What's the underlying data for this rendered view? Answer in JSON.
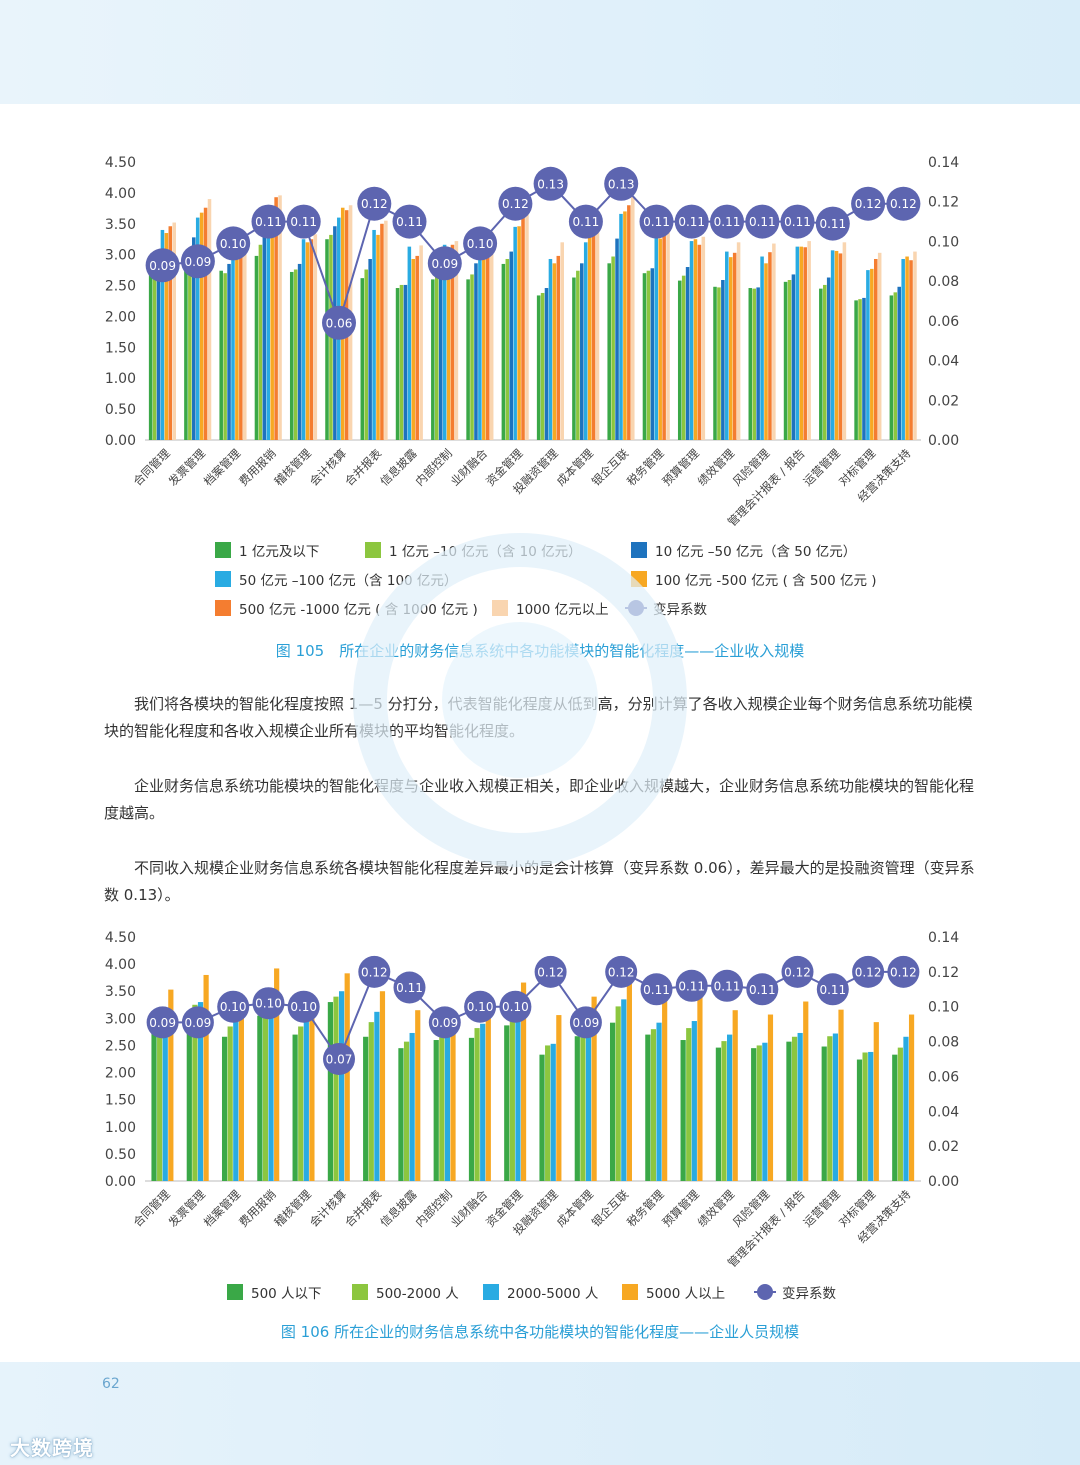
{
  "page": {
    "page_number": "62",
    "brand_logo": "大数跨境"
  },
  "categories": [
    "合同管理",
    "发票管理",
    "档案管理",
    "费用报销",
    "稽核管理",
    "会计核算",
    "合并报表",
    "信息披露",
    "内部控制",
    "业财融合",
    "资金管理",
    "投融资管理",
    "成本管理",
    "银企互联",
    "税务管理",
    "预算管理",
    "绩效管理",
    "风险管理",
    "管理会计报表 / 报告",
    "运营管理",
    "对标管理",
    "经营决策支持"
  ],
  "chart_data": [
    {
      "type": "bar",
      "title": "图 105　所在企业的财务信息系统中各功能模块的智能化程度——企业收入规模",
      "y_ticks": [
        "4.50",
        "4.00",
        "3.50",
        "3.00",
        "2.50",
        "2.00",
        "1.50",
        "1.00",
        "0.50",
        "0.00"
      ],
      "y2_ticks": [
        "0.14",
        "0.12",
        "0.10",
        "0.08",
        "0.06",
        "0.04",
        "0.02",
        "0.00"
      ],
      "ylim": [
        0,
        4.5
      ],
      "y2lim": [
        0,
        0.14
      ],
      "series": [
        {
          "name": "1 亿元及以下",
          "color": "#3aa847",
          "values": [
            2.82,
            2.9,
            2.74,
            2.98,
            2.72,
            3.25,
            2.62,
            2.46,
            2.6,
            2.6,
            2.85,
            2.34,
            2.63,
            2.86,
            2.7,
            2.58,
            2.48,
            2.46,
            2.56,
            2.45,
            2.26,
            2.34
          ]
        },
        {
          "name": "1 亿元 –10 亿元（含 10 亿元）",
          "color": "#8cc63f",
          "values": [
            2.88,
            2.95,
            2.7,
            3.16,
            2.76,
            3.32,
            2.76,
            2.51,
            2.66,
            2.68,
            2.93,
            2.38,
            2.74,
            2.97,
            2.74,
            2.66,
            2.47,
            2.45,
            2.59,
            2.51,
            2.28,
            2.39
          ]
        },
        {
          "name": "10 亿元 –50 亿元（含 50 亿元）",
          "color": "#1e73be",
          "values": [
            3.0,
            3.28,
            2.85,
            3.28,
            2.85,
            3.46,
            2.93,
            2.51,
            2.82,
            2.86,
            3.05,
            2.46,
            2.86,
            3.26,
            2.78,
            2.8,
            2.59,
            2.47,
            2.68,
            2.63,
            2.3,
            2.48
          ]
        },
        {
          "name": "50 亿元 –100 亿元（含 100 亿元）",
          "color": "#29abe2",
          "values": [
            3.4,
            3.6,
            3.1,
            3.6,
            3.25,
            3.6,
            3.4,
            3.13,
            3.16,
            3.1,
            3.45,
            2.93,
            3.2,
            3.66,
            3.28,
            3.22,
            3.05,
            2.97,
            3.13,
            3.07,
            2.75,
            2.93
          ]
        },
        {
          "name": "100 亿元 -500 亿元 ( 含 500 亿元 )",
          "color": "#f7a823",
          "values": [
            3.35,
            3.68,
            3.05,
            3.66,
            3.2,
            3.76,
            3.32,
            2.93,
            3.08,
            3.15,
            3.46,
            2.86,
            3.36,
            3.7,
            3.26,
            3.25,
            2.96,
            2.86,
            3.13,
            3.06,
            2.77,
            2.97
          ]
        },
        {
          "name": "500 亿元 -1000 亿元 ( 含 1000 亿元 )",
          "color": "#f47d30",
          "values": [
            3.46,
            3.76,
            3.15,
            3.93,
            3.25,
            3.72,
            3.5,
            2.98,
            3.16,
            3.3,
            3.6,
            2.98,
            3.46,
            3.8,
            3.32,
            3.16,
            3.03,
            3.04,
            3.12,
            3.02,
            2.93,
            2.91
          ]
        },
        {
          "name": "1000 亿元以上",
          "color": "#f9d5b0",
          "values": [
            3.52,
            3.9,
            3.26,
            3.96,
            3.33,
            3.8,
            3.55,
            3.15,
            3.22,
            3.37,
            3.71,
            3.2,
            3.6,
            3.93,
            3.38,
            3.29,
            3.2,
            3.18,
            3.22,
            3.2,
            3.03,
            3.05
          ]
        }
      ],
      "line": {
        "name": "变异系数",
        "color": "#5d65b0",
        "values": [
          0.09,
          0.09,
          0.1,
          0.11,
          0.11,
          0.06,
          0.12,
          0.11,
          0.09,
          0.1,
          0.12,
          0.13,
          0.11,
          0.13,
          0.11,
          0.11,
          0.11,
          0.11,
          0.11,
          0.11,
          0.12,
          0.12
        ],
        "labels": [
          "0.09",
          "0.09",
          "0.10",
          "0.11",
          "0.11",
          "0.06",
          "0.12",
          "0.11",
          "0.09",
          "0.10",
          "0.12",
          "0.13",
          "0.11",
          "0.13",
          "0.11",
          "0.11",
          "0.11",
          "0.11",
          "0.11",
          "0.11",
          "0.12",
          "0.12"
        ],
        "plot_values": [
          0.088,
          0.09,
          0.099,
          0.11,
          0.11,
          0.059,
          0.119,
          0.11,
          0.089,
          0.099,
          0.119,
          0.129,
          0.11,
          0.129,
          0.11,
          0.11,
          0.11,
          0.11,
          0.11,
          0.109,
          0.119,
          0.119
        ]
      }
    },
    {
      "type": "bar",
      "title": "图 106  所在企业的财务信息系统中各功能模块的智能化程度——企业人员规模",
      "y_ticks": [
        "4.50",
        "4.00",
        "3.50",
        "3.00",
        "2.50",
        "2.00",
        "1.50",
        "1.00",
        "0.50",
        "0.00"
      ],
      "y2_ticks": [
        "0.14",
        "0.12",
        "0.10",
        "0.08",
        "0.06",
        "0.04",
        "0.02",
        "0.00"
      ],
      "ylim": [
        0,
        4.5
      ],
      "y2lim": [
        0,
        0.14
      ],
      "series": [
        {
          "name": "500 人以下",
          "color": "#3aa847",
          "values": [
            2.85,
            2.9,
            2.66,
            3.05,
            2.7,
            3.3,
            2.66,
            2.45,
            2.6,
            2.64,
            2.87,
            2.33,
            2.67,
            2.92,
            2.7,
            2.6,
            2.46,
            2.45,
            2.57,
            2.48,
            2.24,
            2.33
          ]
        },
        {
          "name": "500-2000 人",
          "color": "#8cc63f",
          "values": [
            2.95,
            3.25,
            2.85,
            3.1,
            2.85,
            3.4,
            2.93,
            2.57,
            2.67,
            2.82,
            2.96,
            2.5,
            2.82,
            3.22,
            2.8,
            2.82,
            2.58,
            2.5,
            2.66,
            2.67,
            2.37,
            2.46
          ]
        },
        {
          "name": "2000-5000 人",
          "color": "#29abe2",
          "values": [
            3.0,
            3.3,
            2.97,
            3.2,
            2.97,
            3.5,
            3.12,
            2.73,
            2.73,
            2.9,
            3.05,
            2.53,
            2.95,
            3.35,
            2.92,
            2.95,
            2.7,
            2.55,
            2.73,
            2.72,
            2.38,
            2.66
          ]
        },
        {
          "name": "5000 人以上",
          "color": "#f7a823",
          "values": [
            3.53,
            3.8,
            3.4,
            3.92,
            3.4,
            3.83,
            3.5,
            3.15,
            3.1,
            3.35,
            3.66,
            3.06,
            3.4,
            3.8,
            3.4,
            3.4,
            3.15,
            3.07,
            3.31,
            3.16,
            2.93,
            3.07
          ]
        }
      ],
      "line": {
        "name": "变异系数",
        "color": "#5d65b0",
        "values": [
          0.09,
          0.09,
          0.1,
          0.1,
          0.1,
          0.07,
          0.12,
          0.11,
          0.09,
          0.1,
          0.1,
          0.12,
          0.09,
          0.12,
          0.11,
          0.11,
          0.11,
          0.11,
          0.12,
          0.11,
          0.12,
          0.12
        ],
        "labels": [
          "0.09",
          "0.09",
          "0.10",
          "0.10",
          "0.10",
          "0.07",
          "0.12",
          "0.11",
          "0.09",
          "0.10",
          "0.10",
          "0.12",
          "0.09",
          "0.12",
          "0.11",
          "0.11",
          "0.11",
          "0.11",
          "0.12",
          "0.11",
          "0.12",
          "0.12"
        ],
        "plot_values": [
          0.091,
          0.091,
          0.1,
          0.102,
          0.1,
          0.07,
          0.12,
          0.111,
          0.091,
          0.1,
          0.1,
          0.12,
          0.091,
          0.12,
          0.11,
          0.112,
          0.112,
          0.11,
          0.12,
          0.11,
          0.12,
          0.12
        ]
      }
    }
  ],
  "text": {
    "caption1": "图 105　所在企业的财务信息系统中各功能模块的智能化程度——企业收入规模",
    "caption2": "图 106  所在企业的财务信息系统中各功能模块的智能化程度——企业人员规模",
    "para1": "我们将各模块的智能化程度按照 1—5 分打分，代表智能化程度从低到高，分别计算了各收入规模企业每个财务信息系统功能模块的智能化程度和各收入规模企业所有模块的平均智能化程度。",
    "para2": "企业财务信息系统功能模块的智能化程度与企业收入规模正相关，即企业收入规模越大，企业财务信息系统功能模块的智能化程度越高。",
    "para3": "不同收入规模企业财务信息系统各模块智能化程度差异最小的是会计核算（变异系数 0.06），差异最大的是投融资管理（变异系数 0.13）。"
  },
  "legend1": [
    "1 亿元及以下",
    "1 亿元 –10 亿元（含 10 亿元）",
    "10 亿元 –50 亿元（含 50 亿元）",
    "50 亿元 –100 亿元（含 100 亿元）",
    "100 亿元 -500 亿元 ( 含 500 亿元 )",
    "500 亿元 -1000 亿元 ( 含 1000 亿元 )",
    "1000 亿元以上",
    "变异系数"
  ],
  "legend2": [
    "500 人以下",
    "500-2000 人",
    "2000-5000 人",
    "5000 人以上",
    "变异系数"
  ],
  "colors": {
    "accent": "#2a9fd6",
    "line": "#5d65b0"
  }
}
